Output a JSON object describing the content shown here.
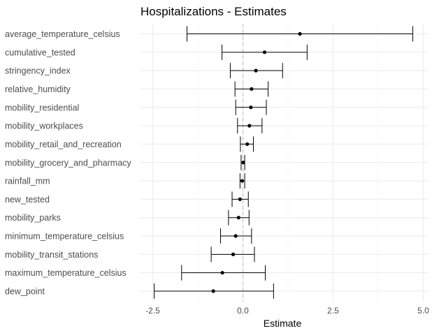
{
  "chart_data": {
    "type": "forest",
    "title": "Hospitalizations - Estimates",
    "xlabel": "Estimate",
    "ylabel": "",
    "xlim": [
      -2.6,
      5.1
    ],
    "xticks": [
      "-2.5",
      "0.0",
      "2.5",
      "5.0"
    ],
    "xtick_values": [
      -2.5,
      0.0,
      2.5,
      5.0
    ],
    "reference_line": 0,
    "grid": true,
    "rows": [
      {
        "label": "average_temperature_celsius",
        "estimate": 1.58,
        "lower": -1.55,
        "upper": 4.71
      },
      {
        "label": "cumulative_tested",
        "estimate": 0.6,
        "lower": -0.58,
        "upper": 1.78
      },
      {
        "label": "stringency_index",
        "estimate": 0.36,
        "lower": -0.35,
        "upper": 1.1
      },
      {
        "label": "relative_humidity",
        "estimate": 0.24,
        "lower": -0.22,
        "upper": 0.7
      },
      {
        "label": "mobility_residential",
        "estimate": 0.22,
        "lower": -0.2,
        "upper": 0.65
      },
      {
        "label": "mobility_workplaces",
        "estimate": 0.18,
        "lower": -0.15,
        "upper": 0.53
      },
      {
        "label": "mobility_retail_and_recreation",
        "estimate": 0.12,
        "lower": -0.07,
        "upper": 0.29
      },
      {
        "label": "mobility_grocery_and_pharmacy",
        "estimate": 0.01,
        "lower": -0.05,
        "upper": 0.05
      },
      {
        "label": "rainfall_mm",
        "estimate": -0.02,
        "lower": -0.08,
        "upper": 0.05
      },
      {
        "label": "new_tested",
        "estimate": -0.08,
        "lower": -0.3,
        "upper": 0.15
      },
      {
        "label": "mobility_parks",
        "estimate": -0.12,
        "lower": -0.4,
        "upper": 0.17
      },
      {
        "label": "minimum_temperature_celsius",
        "estimate": -0.2,
        "lower": -0.62,
        "upper": 0.24
      },
      {
        "label": "mobility_transit_stations",
        "estimate": -0.27,
        "lower": -0.88,
        "upper": 0.32
      },
      {
        "label": "maximum_temperature_celsius",
        "estimate": -0.57,
        "lower": -1.7,
        "upper": 0.62
      },
      {
        "label": "dew_point",
        "estimate": -0.82,
        "lower": -2.46,
        "upper": 0.85
      }
    ]
  }
}
